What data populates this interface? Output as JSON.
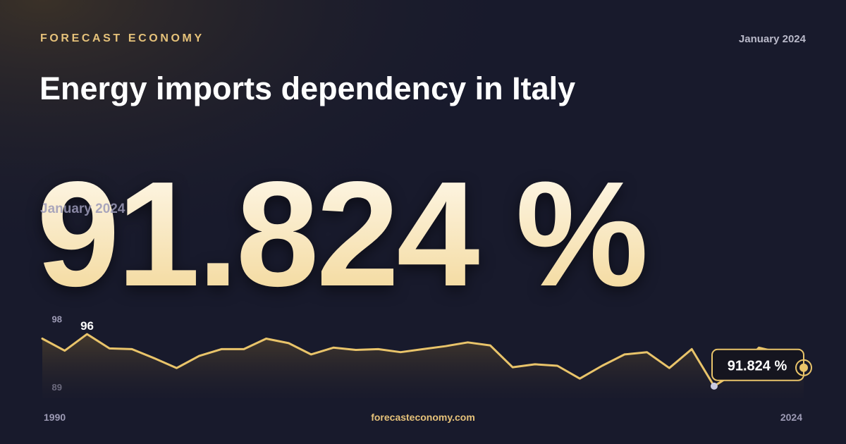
{
  "brand": "FORECAST ECONOMY",
  "date": "January 2024",
  "title": "Energy imports dependency in Italy",
  "headline": "91.824 %",
  "footer": "forecasteconomy.com",
  "chart_data": {
    "type": "line",
    "x": [
      1990,
      1991,
      1992,
      1993,
      1994,
      1995,
      1996,
      1997,
      1998,
      1999,
      2000,
      2001,
      2002,
      2003,
      2004,
      2005,
      2006,
      2007,
      2008,
      2009,
      2010,
      2011,
      2012,
      2013,
      2014,
      2015,
      2016,
      2017,
      2018,
      2019,
      2020,
      2021,
      2022,
      2023,
      2024
    ],
    "values": [
      95.4,
      93.8,
      96,
      94.1,
      94.0,
      92.8,
      91.5,
      93.1,
      94.0,
      94.0,
      95.4,
      94.8,
      93.3,
      94.2,
      93.9,
      94.0,
      93.6,
      94.0,
      94.4,
      94.9,
      94.5,
      91.6,
      92.0,
      91.8,
      90.1,
      91.8,
      93.3,
      93.6,
      91.5,
      94.0,
      89.1,
      91.0,
      94.2,
      93.5,
      91.824
    ],
    "color": "#e9c46a",
    "xlim": [
      1990,
      2024
    ],
    "xticks": [
      1990,
      2024
    ],
    "ylim": [
      87.5,
      97.5
    ],
    "yticks": [
      98,
      89
    ]
  }
}
